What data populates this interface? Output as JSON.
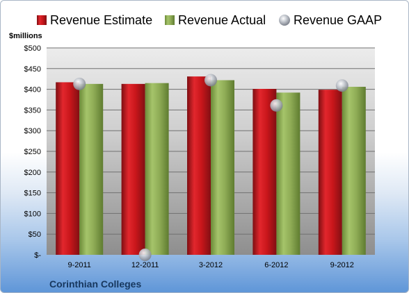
{
  "chart_data": {
    "type": "bar",
    "title": "",
    "ylabel": "$millions",
    "xlabel": "",
    "categories": [
      "9-2011",
      "12-2011",
      "3-2012",
      "6-2012",
      "9-2012"
    ],
    "series": [
      {
        "name": "Revenue Estimate",
        "type": "bar",
        "color": "#c0151a",
        "values": [
          417,
          413,
          431,
          401,
          399
        ]
      },
      {
        "name": "Revenue Actual",
        "type": "bar",
        "color": "#8fac56",
        "values": [
          413,
          415,
          422,
          392,
          406
        ]
      },
      {
        "name": "Revenue GAAP",
        "type": "marker",
        "color": "#b7bcc5",
        "values": [
          413,
          0,
          422,
          361,
          409
        ]
      }
    ],
    "ylim": [
      0,
      500
    ],
    "ytick_values": [
      0,
      50,
      100,
      150,
      200,
      250,
      300,
      350,
      400,
      450,
      500
    ],
    "ytick_labels": [
      "$-",
      "$50",
      "$100",
      "$150",
      "$200",
      "$250",
      "$300",
      "$350",
      "$400",
      "$450",
      "$500"
    ],
    "grid": true,
    "legend": "top",
    "company": "Corinthian Colleges",
    "colors": {
      "plot_bg_top": "#ececec",
      "plot_bg_bottom": "#8e8e8e",
      "gridline": "#707070",
      "company_text": "#17375e"
    }
  }
}
